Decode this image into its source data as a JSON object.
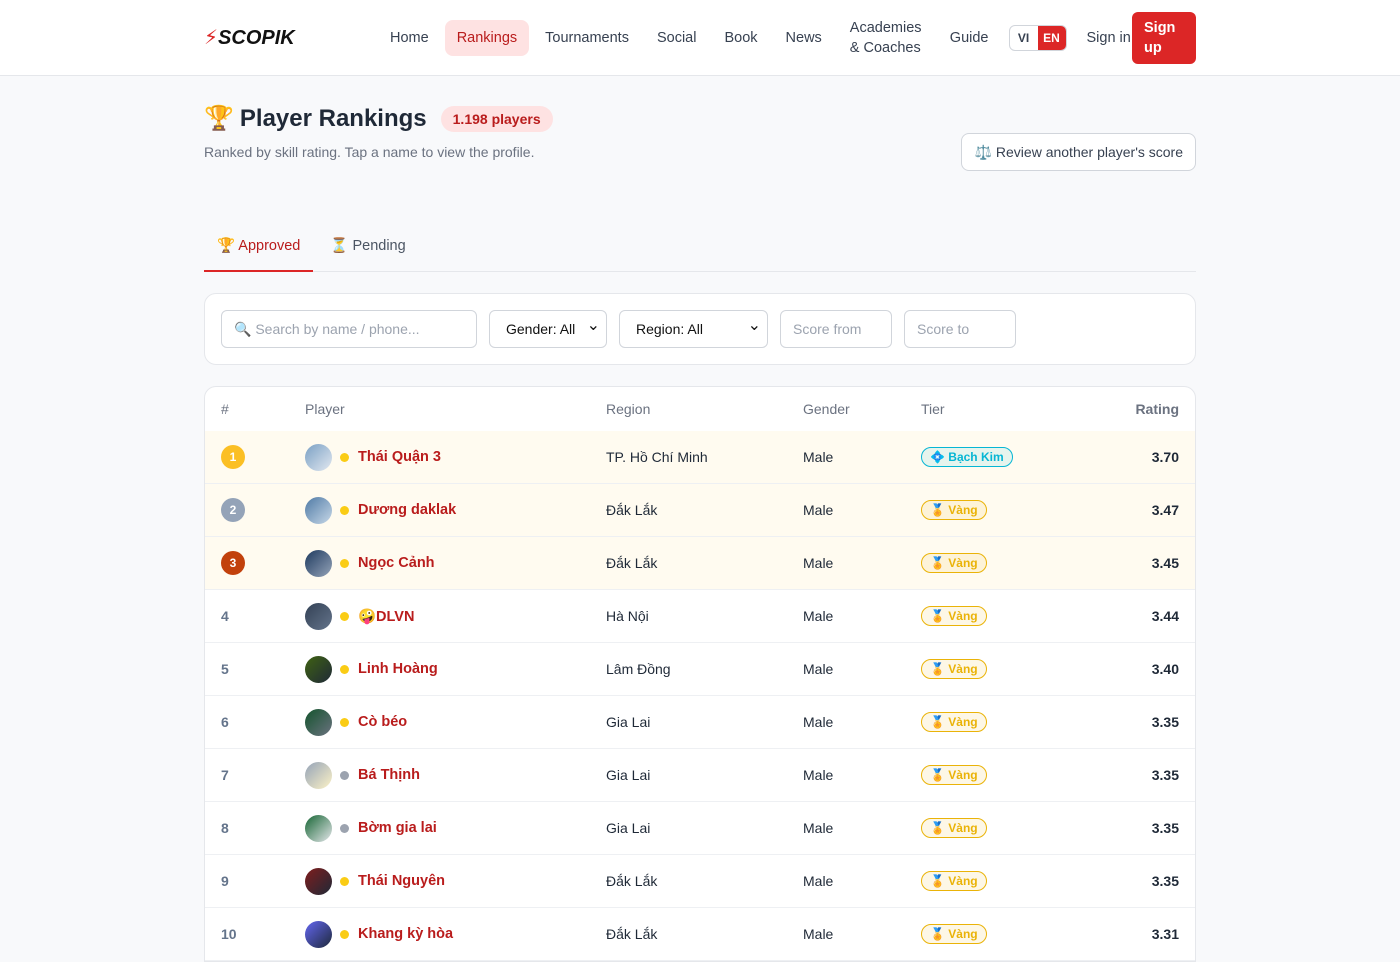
{
  "nav": {
    "logo": "SCOPIK",
    "links": [
      "Home",
      "Rankings",
      "Tournaments",
      "Social",
      "Book",
      "News",
      "Academies & Coaches",
      "Guide"
    ],
    "languages": [
      "VI",
      "EN"
    ],
    "sign_in": "Sign in",
    "sign_up": "Sign up"
  },
  "header": {
    "title": "Player Rankings",
    "count": "1.198 players",
    "subtitle": "Ranked by skill rating. Tap a name to view the profile.",
    "review_button": "Review another player's score"
  },
  "tabs": [
    "Approved",
    "Pending"
  ],
  "filters": {
    "search": "Search by name / phone...",
    "gender": "Gender: All",
    "region": "Region: All",
    "score_from": "Score from",
    "score_to": "Score to"
  },
  "table": {
    "columns": [
      "#",
      "Player",
      "Region",
      "Gender",
      "Tier",
      "Rating"
    ],
    "rows": [
      {
        "rank": 1,
        "player": "Thái Quận 3",
        "region": "TP. Hồ Chí Minh",
        "gender": "Male",
        "tier": "Bạch Kim",
        "rating": "3.70",
        "dot": "#facc15",
        "tier_color": "#06b6d4"
      },
      {
        "rank": 2,
        "player": "Dương daklak",
        "region": "Đắk Lắk",
        "gender": "Male",
        "tier": "Vàng",
        "rating": "3.47",
        "dot": "#facc15",
        "tier_color": "#eab308"
      },
      {
        "rank": 3,
        "player": "Ngọc Cảnh",
        "region": "Đắk Lắk",
        "gender": "Male",
        "tier": "Vàng",
        "rating": "3.45",
        "dot": "#facc15",
        "tier_color": "#eab308"
      },
      {
        "rank": 4,
        "player": "🤪DLVN",
        "region": "Hà Nội",
        "gender": "Male",
        "tier": "Vàng",
        "rating": "3.44",
        "dot": "#facc15",
        "tier_color": "#eab308"
      },
      {
        "rank": 5,
        "player": "Linh Hoàng",
        "region": "Lâm Đồng",
        "gender": "Male",
        "tier": "Vàng",
        "rating": "3.40",
        "dot": "#facc15",
        "tier_color": "#eab308"
      },
      {
        "rank": 6,
        "player": "Cò béo",
        "region": "Gia Lai",
        "gender": "Male",
        "tier": "Vàng",
        "rating": "3.35",
        "dot": "#facc15",
        "tier_color": "#eab308"
      },
      {
        "rank": 7,
        "player": "Bá Thịnh",
        "region": "Gia Lai",
        "gender": "Male",
        "tier": "Vàng",
        "rating": "3.35",
        "dot": "#9ca3af",
        "tier_color": "#eab308"
      },
      {
        "rank": 8,
        "player": "Bờm gia lai",
        "region": "Gia Lai",
        "gender": "Male",
        "tier": "Vàng",
        "rating": "3.35",
        "dot": "#9ca3af",
        "tier_color": "#eab308"
      },
      {
        "rank": 9,
        "player": "Thái Nguyên",
        "region": "Đắk Lắk",
        "gender": "Male",
        "tier": "Vàng",
        "rating": "3.35",
        "dot": "#facc15",
        "tier_color": "#eab308"
      },
      {
        "rank": 10,
        "player": "Khang kỳ hòa",
        "region": "Đắk Lắk",
        "gender": "Male",
        "tier": "Vàng",
        "rating": "3.31",
        "dot": "#facc15",
        "tier_color": "#eab308"
      }
    ]
  }
}
